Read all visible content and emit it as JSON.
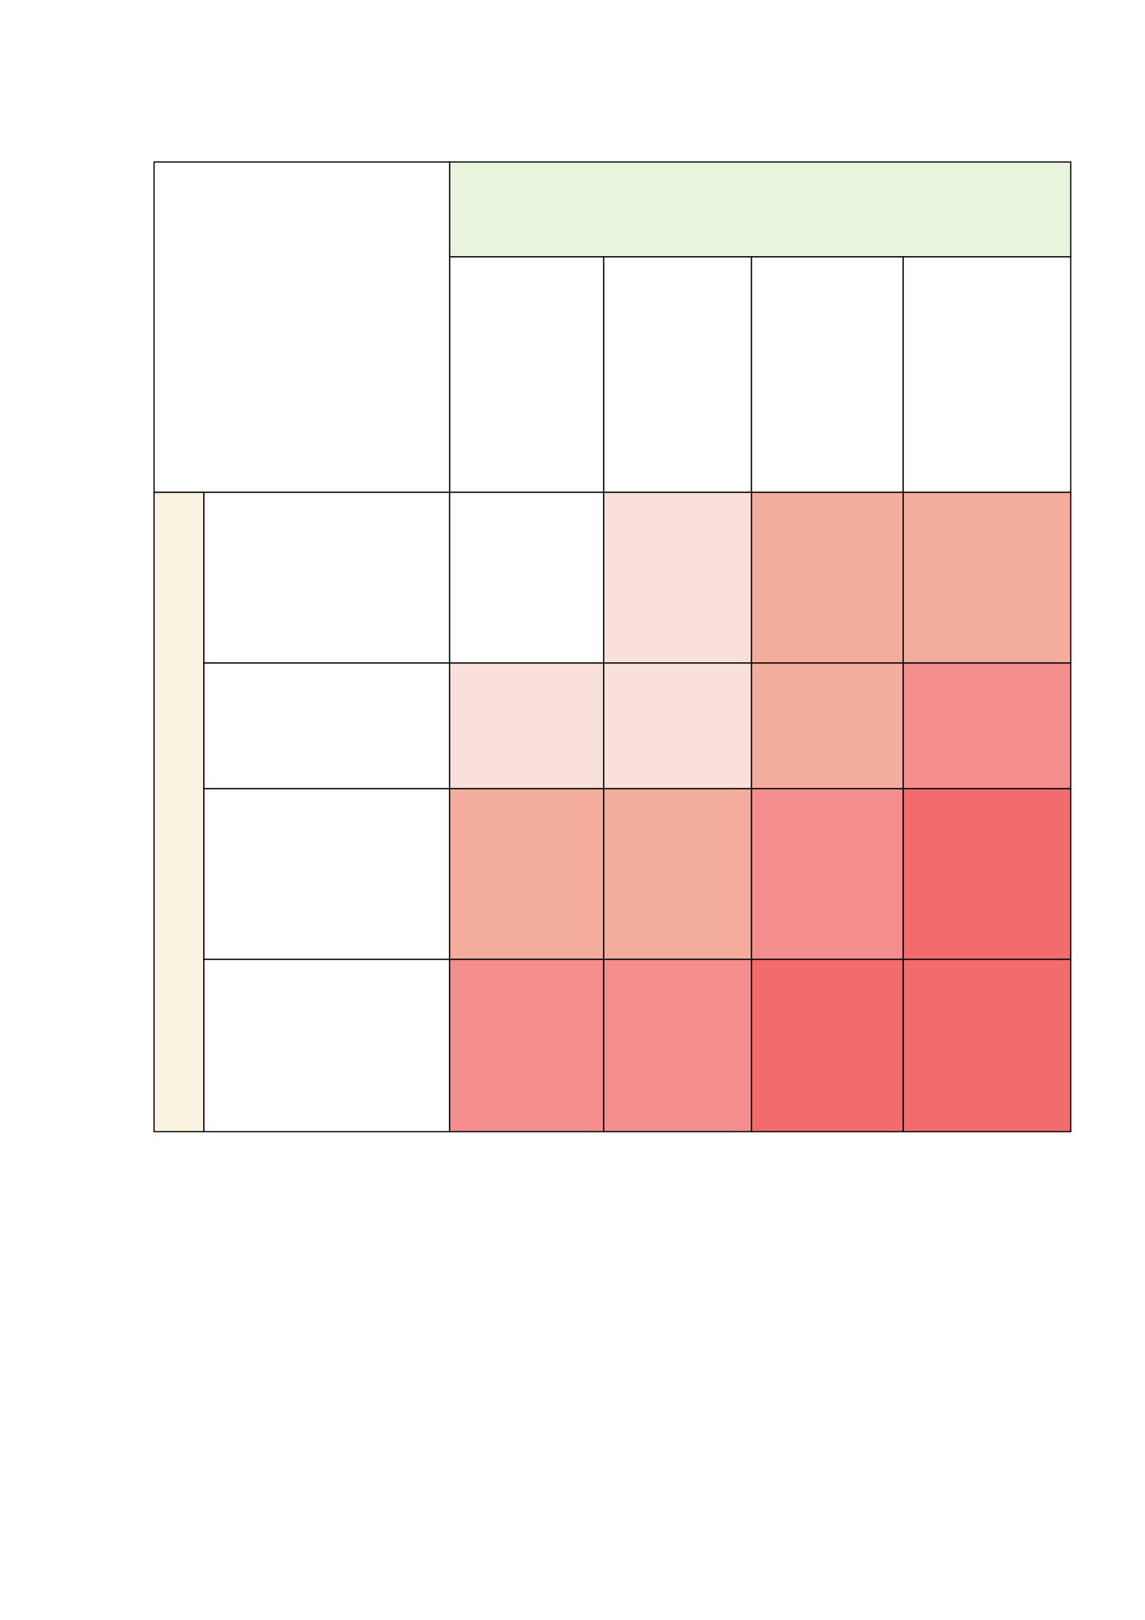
{
  "table": {
    "header_color": "#e8f5dc",
    "side_color": "#faf3df",
    "cell_colors": [
      [
        "#ffffff",
        "#fae0da",
        "#f4ad9c",
        "#f4ad9c"
      ],
      [
        "#fae0da",
        "#fae0da",
        "#f4ad9c",
        "#f48e8e"
      ],
      [
        "#f4ad9c",
        "#f4ad9c",
        "#f48e8e",
        "#f26b6d"
      ],
      [
        "#f48e8e",
        "#f48e8e",
        "#f26b6d",
        "#f26b6d"
      ]
    ]
  }
}
